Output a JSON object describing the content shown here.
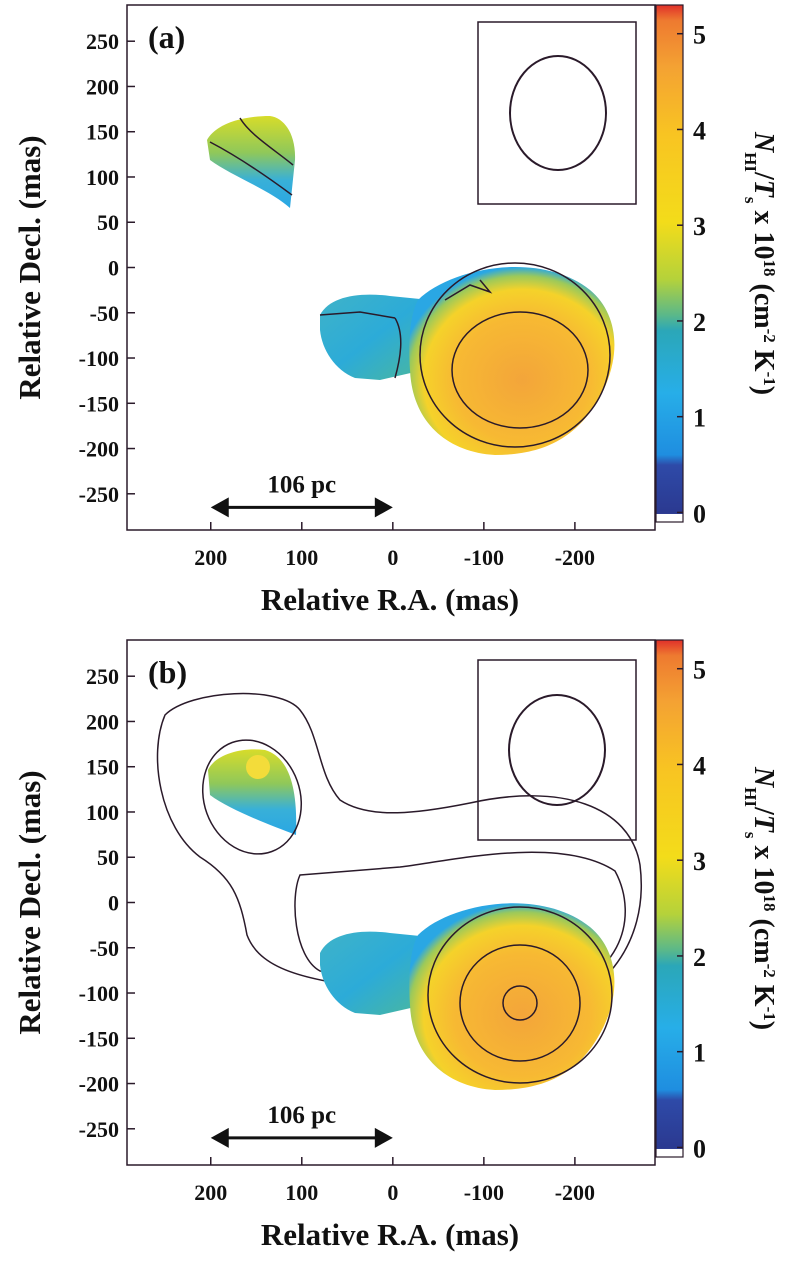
{
  "chart_data": [
    {
      "type": "image",
      "panel_label": "(a)",
      "xlabel": "Relative R.A. (mas)",
      "ylabel": "Relative Decl. (mas)",
      "xlim": [
        292,
        -288
      ],
      "xticks": [
        200,
        100,
        0,
        -100,
        -200
      ],
      "ylim": [
        -290,
        290
      ],
      "yticks": [
        250,
        200,
        150,
        100,
        50,
        0,
        -50,
        -100,
        -150,
        -200,
        -250
      ],
      "clim": [
        -0.1,
        5.3
      ],
      "cticks": [
        0,
        1,
        2,
        3,
        4,
        5
      ],
      "colorbar_label": [
        "N",
        "HI",
        "/",
        "T",
        "s",
        " x 10",
        "18",
        " (cm",
        "-2",
        " K",
        "-1",
        ")"
      ],
      "colorbar_label_style": [
        "italic",
        "sub",
        "normal",
        "italic",
        "sub",
        "normal",
        "sup",
        "normal",
        "sup",
        "normal",
        "sup",
        "normal"
      ],
      "scale_bar": {
        "label": "106 pc",
        "from": 200,
        "to": 0,
        "y": -265
      }
    },
    {
      "type": "image",
      "panel_label": "(b)",
      "xlabel": "Relative R.A. (mas)",
      "ylabel": "Relative Decl. (mas)",
      "xlim": [
        292,
        -288
      ],
      "xticks": [
        200,
        100,
        0,
        -100,
        -200
      ],
      "ylim": [
        -290,
        290
      ],
      "yticks": [
        250,
        200,
        150,
        100,
        50,
        0,
        -50,
        -100,
        -150,
        -200,
        -250
      ],
      "clim": [
        -0.1,
        5.3
      ],
      "cticks": [
        0,
        1,
        2,
        3,
        4,
        5
      ],
      "colorbar_label": [
        "N",
        "HI",
        "/",
        "T",
        "s",
        " x 10",
        "18",
        " (cm",
        "-2",
        " K",
        "-1",
        ")"
      ],
      "colorbar_label_style": [
        "italic",
        "sub",
        "normal",
        "italic",
        "sub",
        "normal",
        "sup",
        "normal",
        "sup",
        "normal",
        "sup",
        "normal"
      ],
      "scale_bar": {
        "label": "106 pc",
        "from": 200,
        "to": 0,
        "y": -260
      }
    }
  ]
}
